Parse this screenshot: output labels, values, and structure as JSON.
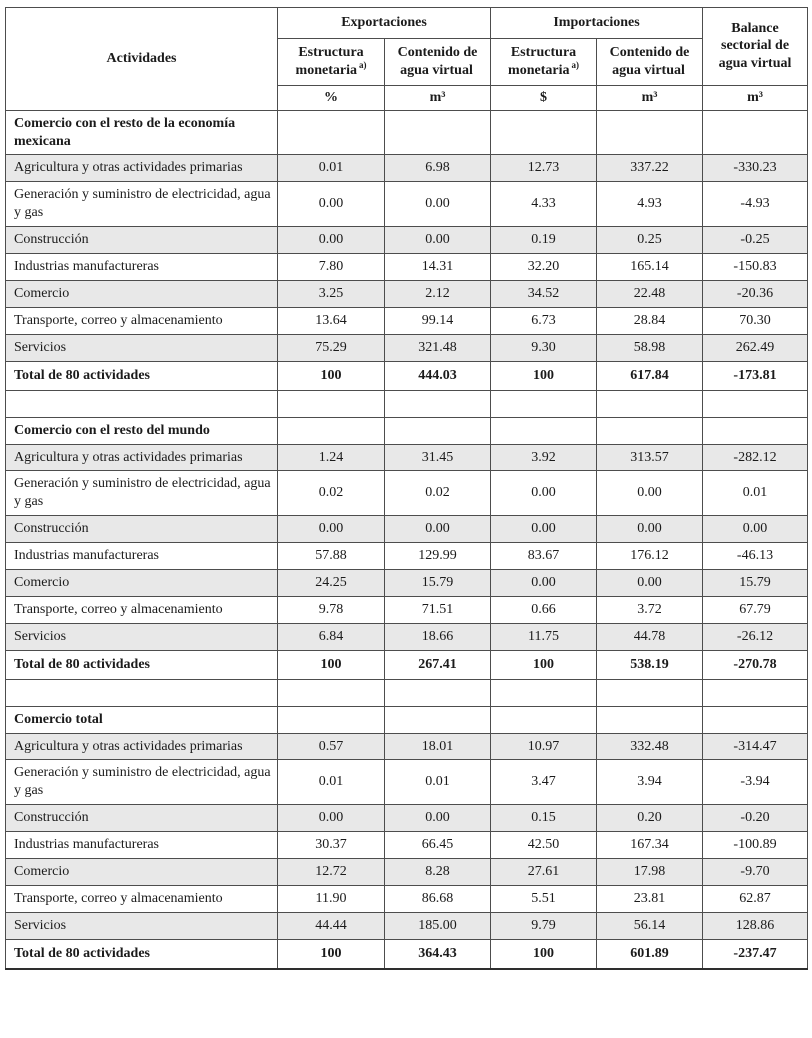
{
  "header": {
    "activities": "Actividades",
    "exportaciones": "Exportaciones",
    "importaciones": "Importaciones",
    "balance": "Balance sectorial de agua virtual",
    "balance_unit": "m³",
    "sub": [
      {
        "label": "Estructura monetaria",
        "sup": "a)",
        "unit": "%"
      },
      {
        "label": "Contenido de agua virtual",
        "sup": "",
        "unit": "m³"
      },
      {
        "label": "Estructura monetaria",
        "sup": "a)",
        "unit": "$"
      },
      {
        "label": "Contenido de agua virtual",
        "sup": "",
        "unit": "m³"
      }
    ]
  },
  "sections": [
    {
      "title": "Comercio con el resto de la economía mexicana",
      "rows": [
        {
          "label": "Agricultura y otras actividades primarias",
          "values": [
            "0.01",
            "6.98",
            "12.73",
            "337.22",
            "-330.23"
          ]
        },
        {
          "label": "Generación y suministro de electricidad, agua y gas",
          "values": [
            "0.00",
            "0.00",
            "4.33",
            "4.93",
            "-4.93"
          ]
        },
        {
          "label": "Construcción",
          "values": [
            "0.00",
            "0.00",
            "0.19",
            "0.25",
            "-0.25"
          ]
        },
        {
          "label": "Industrias manufactureras",
          "values": [
            "7.80",
            "14.31",
            "32.20",
            "165.14",
            "-150.83"
          ]
        },
        {
          "label": "Comercio",
          "values": [
            "3.25",
            "2.12",
            "34.52",
            "22.48",
            "-20.36"
          ]
        },
        {
          "label": "Transporte, correo y almacenamiento",
          "values": [
            "13.64",
            "99.14",
            "6.73",
            "28.84",
            "70.30"
          ]
        },
        {
          "label": "Servicios",
          "values": [
            "75.29",
            "321.48",
            "9.30",
            "58.98",
            "262.49"
          ]
        }
      ],
      "total": {
        "label": "Total de 80 actividades",
        "values": [
          "100",
          "444.03",
          "100",
          "617.84",
          "-173.81"
        ]
      }
    },
    {
      "title": "Comercio con el resto del mundo",
      "rows": [
        {
          "label": "Agricultura y otras actividades primarias",
          "values": [
            "1.24",
            "31.45",
            "3.92",
            "313.57",
            "-282.12"
          ]
        },
        {
          "label": "Generación y suministro de electricidad, agua y gas",
          "values": [
            "0.02",
            "0.02",
            "0.00",
            "0.00",
            "0.01"
          ]
        },
        {
          "label": "Construcción",
          "values": [
            "0.00",
            "0.00",
            "0.00",
            "0.00",
            "0.00"
          ]
        },
        {
          "label": "Industrias manufactureras",
          "values": [
            "57.88",
            "129.99",
            "83.67",
            "176.12",
            "-46.13"
          ]
        },
        {
          "label": "Comercio",
          "values": [
            "24.25",
            "15.79",
            "0.00",
            "0.00",
            "15.79"
          ]
        },
        {
          "label": "Transporte, correo y almacenamiento",
          "values": [
            "9.78",
            "71.51",
            "0.66",
            "3.72",
            "67.79"
          ]
        },
        {
          "label": "Servicios",
          "values": [
            "6.84",
            "18.66",
            "11.75",
            "44.78",
            "-26.12"
          ]
        }
      ],
      "total": {
        "label": "Total de 80 actividades",
        "values": [
          "100",
          "267.41",
          "100",
          "538.19",
          "-270.78"
        ]
      }
    },
    {
      "title": "Comercio total",
      "rows": [
        {
          "label": "Agricultura y otras actividades primarias",
          "values": [
            "0.57",
            "18.01",
            "10.97",
            "332.48",
            "-314.47"
          ]
        },
        {
          "label": "Generación y suministro de electricidad, agua y gas",
          "values": [
            "0.01",
            "0.01",
            "3.47",
            "3.94",
            "-3.94"
          ]
        },
        {
          "label": "Construcción",
          "values": [
            "0.00",
            "0.00",
            "0.15",
            "0.20",
            "-0.20"
          ]
        },
        {
          "label": "Industrias manufactureras",
          "values": [
            "30.37",
            "66.45",
            "42.50",
            "167.34",
            "-100.89"
          ]
        },
        {
          "label": "Comercio",
          "values": [
            "12.72",
            "8.28",
            "27.61",
            "17.98",
            "-9.70"
          ]
        },
        {
          "label": "Transporte, correo y almacenamiento",
          "values": [
            "11.90",
            "86.68",
            "5.51",
            "23.81",
            "62.87"
          ]
        },
        {
          "label": "Servicios",
          "values": [
            "44.44",
            "185.00",
            "9.79",
            "56.14",
            "128.86"
          ]
        }
      ],
      "total": {
        "label": "Total de 80 actividades",
        "values": [
          "100",
          "364.43",
          "100",
          "601.89",
          "-237.47"
        ]
      }
    }
  ]
}
